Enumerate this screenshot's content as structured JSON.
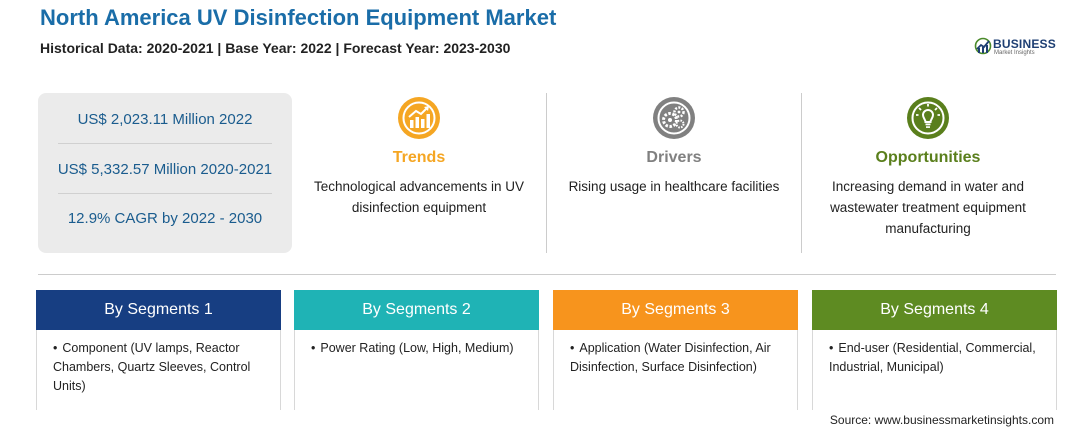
{
  "header": {
    "title": "North America UV Disinfection Equipment Market",
    "subtitle": "Historical Data: 2020-2021 | Base Year: 2022 | Forecast Year: 2023-2030",
    "logo_text": "BUSINESS",
    "logo_sub": "Market Insights"
  },
  "stats": [
    "US$ 2,023.11 Million 2022",
    "US$ 5,332.57 Million 2020-2021",
    "12.9% CAGR by 2022 - 2030"
  ],
  "factors": [
    {
      "label": "Trends",
      "description": "Technological advancements in UV disinfection equipment",
      "color": "#f5a623",
      "icon": "trend-chart-icon"
    },
    {
      "label": "Drivers",
      "description": "Rising usage in healthcare facilities",
      "color": "#808080",
      "icon": "gears-icon"
    },
    {
      "label": "Opportunities",
      "description": "Increasing demand in water and wastewater treatment equipment manufacturing",
      "color": "#5a7f1c",
      "icon": "lightbulb-icon"
    }
  ],
  "segments": [
    {
      "title": "By Segments 1",
      "item": "Component (UV lamps, Reactor Chambers, Quartz Sleeves, Control Units)",
      "color": "#173e82"
    },
    {
      "title": "By Segments 2",
      "item": "Power Rating (Low, High, Medium)",
      "color": "#1fb3b5"
    },
    {
      "title": "By Segments 3",
      "item": "Application (Water Disinfection, Air Disinfection, Surface Disinfection)",
      "color": "#f7941d"
    },
    {
      "title": "By Segments 4",
      "item": "End-user (Residential, Commercial, Industrial, Municipal)",
      "color": "#5e8b22"
    }
  ],
  "source": "Source: www.businessmarketinsights.com"
}
